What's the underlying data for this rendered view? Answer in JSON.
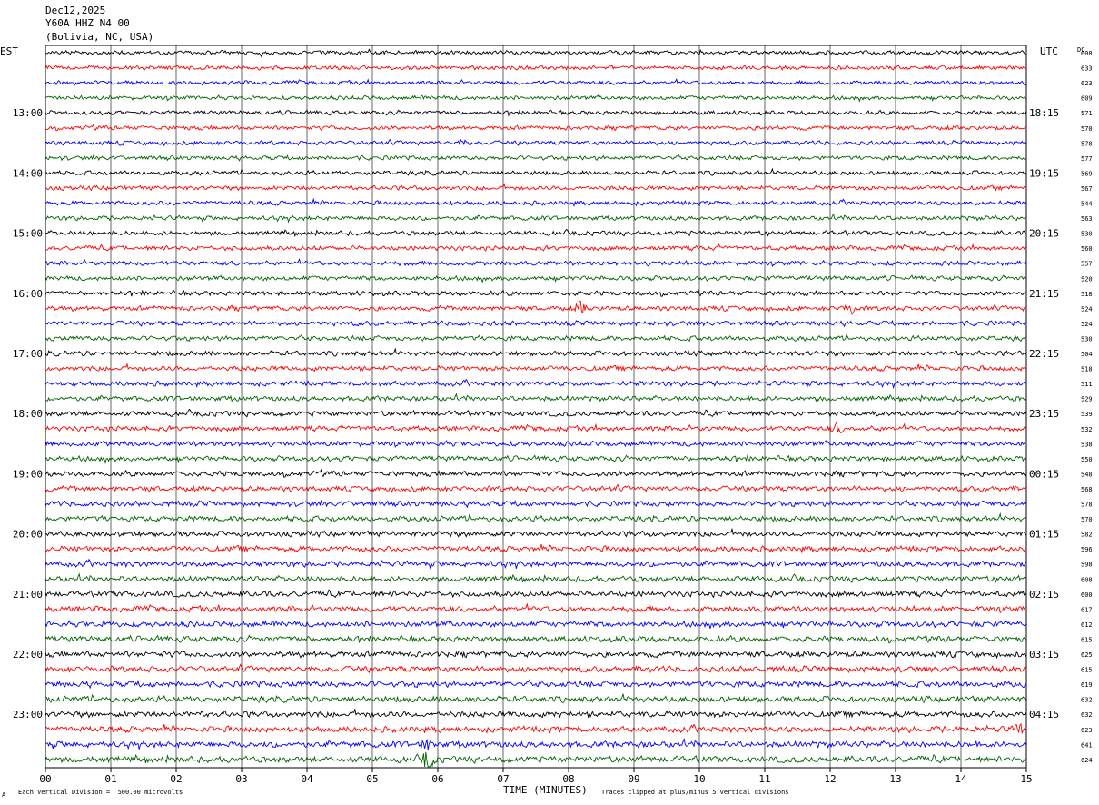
{
  "header": {
    "date": "Dec12,2025",
    "station": "Y60A HHZ N4 00",
    "location": "(Bolivia, NC, USA)"
  },
  "left_timezone": "EST",
  "right_timezone": "UTC",
  "dc_label": "DC",
  "footer": {
    "scale_note": "Each Vertical Division =  500.00 microvolts",
    "clip_note": "Traces clipped at plus/minus 5 vertical divisions",
    "corner_mark": "A"
  },
  "colors": {
    "trace_cycle": [
      "#000000",
      "#ff0000",
      "#0000ff",
      "#006400"
    ],
    "grid": "#000000"
  },
  "chart_data": {
    "type": "line",
    "description_of_axes": "helicorder",
    "xlabel": "TIME (MINUTES)",
    "x_ticks": [
      "00",
      "01",
      "02",
      "03",
      "04",
      "05",
      "06",
      "07",
      "08",
      "09",
      "10",
      "11",
      "12",
      "13",
      "14",
      "15"
    ],
    "xlim": [
      0,
      15
    ],
    "row_count": 48,
    "left_hour_labels": [
      "13:00",
      "14:00",
      "15:00",
      "16:00",
      "17:00",
      "18:00",
      "19:00",
      "20:00",
      "21:00",
      "22:00",
      "23:00"
    ],
    "right_hour_labels": [
      "18:15",
      "19:15",
      "20:15",
      "21:15",
      "22:15",
      "23:15",
      "00:15",
      "01:15",
      "02:15",
      "03:15",
      "04:15"
    ],
    "first_labeled_row": 4,
    "rows_per_hour": 4,
    "dc_offsets": [
      608,
      633,
      623,
      609,
      571,
      570,
      578,
      577,
      569,
      567,
      544,
      563,
      530,
      560,
      557,
      520,
      518,
      524,
      524,
      530,
      504,
      518,
      511,
      529,
      539,
      532,
      538,
      550,
      548,
      568,
      578,
      570,
      582,
      596,
      598,
      608,
      600,
      617,
      612,
      615,
      625,
      615,
      619,
      632,
      632,
      623,
      641,
      624
    ],
    "events": [
      {
        "row": 17,
        "minute": 8.2,
        "amplitude": 2.2
      },
      {
        "row": 17,
        "minute": 12.3,
        "amplitude": 2.0
      },
      {
        "row": 25,
        "minute": 12.1,
        "amplitude": 1.2
      },
      {
        "row": 47,
        "minute": 5.85,
        "amplitude": 2.6
      },
      {
        "row": 46,
        "minute": 5.85,
        "amplitude": 1.4
      },
      {
        "row": 45,
        "minute": 14.9,
        "amplitude": 1.4
      },
      {
        "row": 6,
        "minute": 6.4,
        "amplitude": 1.0
      }
    ]
  }
}
